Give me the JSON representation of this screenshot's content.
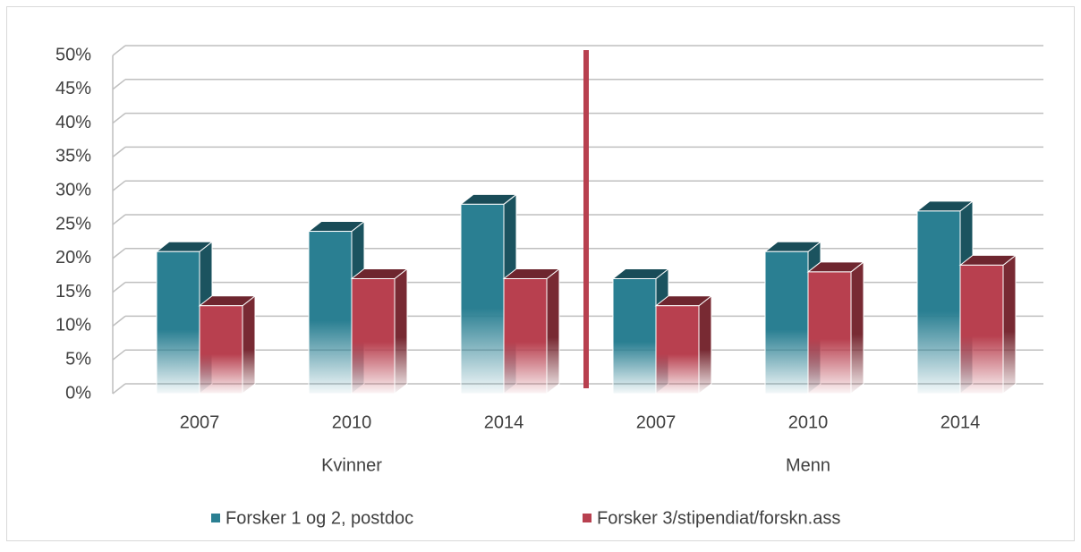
{
  "chart_data": {
    "type": "bar3d",
    "groups": [
      {
        "label": "Kvinner",
        "categories": [
          "2007",
          "2010",
          "2014"
        ]
      },
      {
        "label": "Menn",
        "categories": [
          "2007",
          "2010",
          "2014"
        ]
      }
    ],
    "series": [
      {
        "name": "Forsker 1 og 2, postdoc",
        "color": "#2a7f92",
        "values": [
          21,
          24,
          28,
          17,
          21,
          27
        ]
      },
      {
        "name": "Forsker 3/stipendiat/forskn.ass",
        "color": "#b8404f",
        "values": [
          13,
          17,
          17,
          13,
          18,
          19
        ]
      }
    ],
    "ylim": [
      0,
      50
    ],
    "yticks": [
      {
        "value": 0,
        "label": "0%"
      },
      {
        "value": 5,
        "label": "5%"
      },
      {
        "value": 10,
        "label": "10%"
      },
      {
        "value": 15,
        "label": "15%"
      },
      {
        "value": 20,
        "label": "20%"
      },
      {
        "value": 25,
        "label": "25%"
      },
      {
        "value": 30,
        "label": "30%"
      },
      {
        "value": 35,
        "label": "35%"
      },
      {
        "value": 40,
        "label": "40%"
      },
      {
        "value": 45,
        "label": "45%"
      },
      {
        "value": 50,
        "label": "50%"
      }
    ],
    "grid": true,
    "legend": "bottom",
    "group_divider_color": "#b8404f"
  }
}
